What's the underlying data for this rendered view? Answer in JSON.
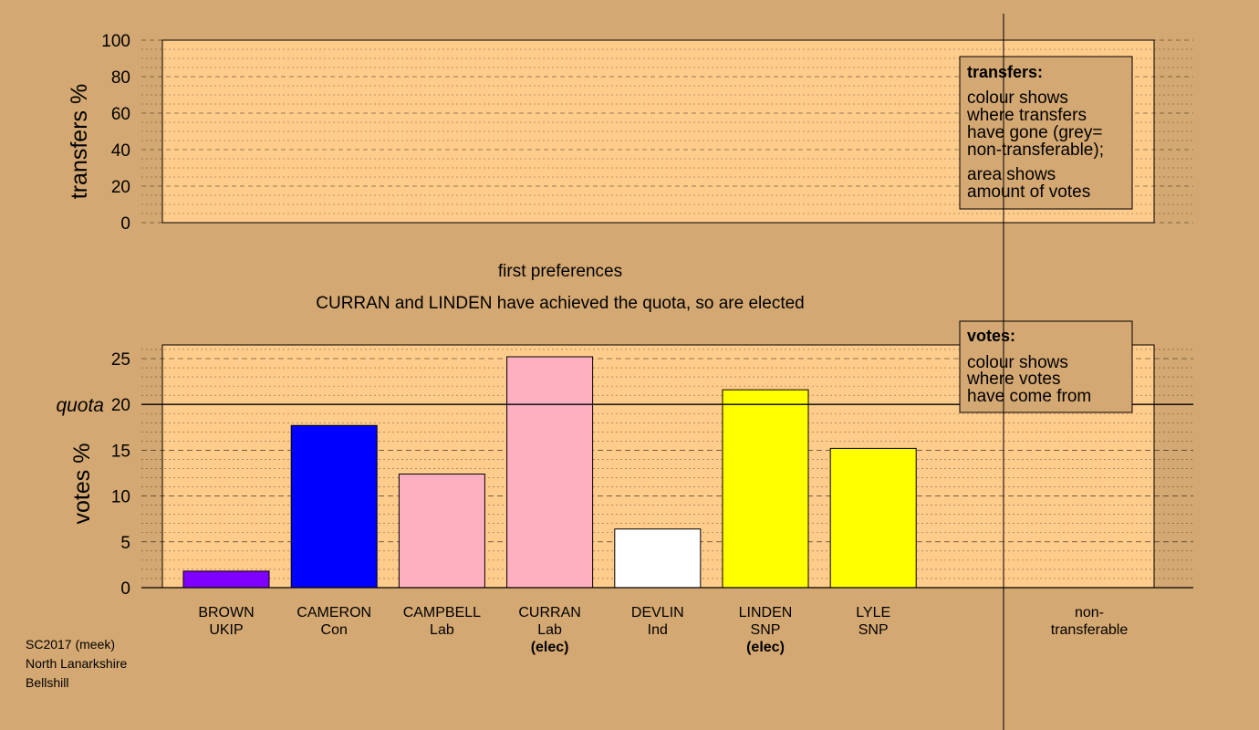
{
  "chart_data": [
    {
      "type": "bar",
      "ylabel": "transfers %",
      "ylim": [
        0,
        100
      ],
      "yticks": [
        "0",
        "20",
        "40",
        "60",
        "80",
        "100"
      ],
      "categories": [],
      "values": [],
      "grid": true,
      "legend": {
        "position": "top-right",
        "title": "transfers:",
        "lines_a": [
          "colour shows",
          "where transfers",
          "have gone (grey=",
          "non-transferable);"
        ],
        "lines_b": [
          "area shows",
          "amount of votes"
        ]
      }
    },
    {
      "type": "bar",
      "ylabel": "votes %",
      "ylim": [
        0,
        26.5
      ],
      "yticks": [
        "0",
        "5",
        "10",
        "15",
        "20",
        "25"
      ],
      "quota_label": "quota",
      "quota": 20,
      "grid": true,
      "categories": [
        "BROWN",
        "CAMERON",
        "CAMPBELL",
        "CURRAN",
        "DEVLIN",
        "LINDEN",
        "LYLE"
      ],
      "parties": [
        "UKIP",
        "Con",
        "Lab",
        "Lab",
        "Ind",
        "SNP",
        "SNP"
      ],
      "elected": [
        "",
        "",
        "",
        "(elec)",
        "",
        "(elec)",
        ""
      ],
      "values": [
        1.8,
        17.7,
        12.4,
        25.2,
        6.4,
        21.6,
        15.2
      ],
      "colors": [
        "#8000FF",
        "#0000FF",
        "#FFB0C0",
        "#FFB0C0",
        "#FFFFFF",
        "#FFFF00",
        "#FFFF00"
      ],
      "nontransferable_label": [
        "non-",
        "transferable"
      ],
      "legend": {
        "position": "top-right",
        "title": "votes:",
        "lines": [
          "colour shows",
          "where votes",
          "have come from"
        ]
      }
    }
  ],
  "caption": "first preferences",
  "status": "CURRAN and LINDEN have achieved the quota, so are elected",
  "source": [
    "SC2017 (meek)",
    "North Lanarkshire",
    "Bellshill"
  ],
  "colors": {
    "background": "#D4A872",
    "panel": "#FFCC8C",
    "legend_box": "#D4A872"
  }
}
